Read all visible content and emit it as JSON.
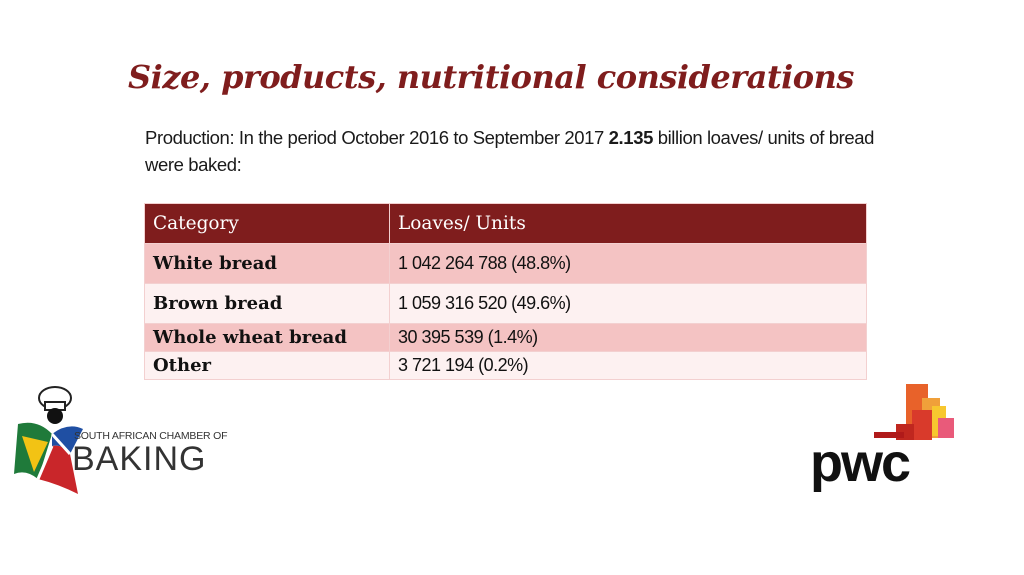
{
  "slide": {
    "title": "Size, products, nutritional considerations"
  },
  "intro": {
    "prefix": "Production: In the period October 2016 to September 2017 ",
    "highlight": "2.135",
    "suffix": " billion loaves/ units of bread were baked:"
  },
  "table": {
    "headers": [
      "Category",
      "Loaves/ Units"
    ],
    "rows": [
      {
        "category": "White bread",
        "value": "1 042 264 788 (48.8%)"
      },
      {
        "category": "Brown bread",
        "value": "1 059 316 520 (49.6%)"
      },
      {
        "category": "Whole wheat bread",
        "value": "30 395 539 (1.4%)"
      },
      {
        "category": "Other",
        "value": "3 721 194 (0.2%)"
      }
    ]
  },
  "logos": {
    "sacb_line1": "SOUTH AFRICAN CHAMBER OF",
    "sacb_line2": "BAKING",
    "pwc": "pwc"
  },
  "colors": {
    "accent": "#7f1d1d",
    "row_a": "#f4c3c3",
    "row_b": "#fdf1f1"
  }
}
